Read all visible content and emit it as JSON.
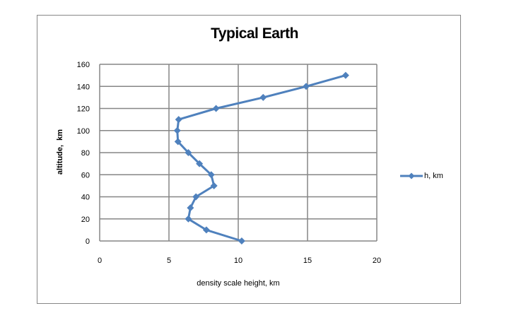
{
  "chart_data": {
    "type": "line",
    "title": "Typical Earth",
    "xlabel": "density scale height,  km",
    "ylabel": "altitude,  km",
    "xlim": [
      0,
      20
    ],
    "ylim": [
      0,
      160
    ],
    "x_ticks": [
      "0",
      "5",
      "10",
      "15",
      "20"
    ],
    "y_ticks": [
      "0",
      "20",
      "40",
      "60",
      "80",
      "100",
      "120",
      "140",
      "160"
    ],
    "grid": true,
    "legend_position": "right",
    "series": [
      {
        "name": "h, km",
        "color": "#4F81BD",
        "marker": "diamond",
        "points": [
          {
            "x": 10.25,
            "y": 0
          },
          {
            "x": 7.7,
            "y": 10
          },
          {
            "x": 6.4,
            "y": 20
          },
          {
            "x": 6.55,
            "y": 30
          },
          {
            "x": 6.95,
            "y": 40
          },
          {
            "x": 8.25,
            "y": 50
          },
          {
            "x": 8.05,
            "y": 60
          },
          {
            "x": 7.2,
            "y": 70
          },
          {
            "x": 6.4,
            "y": 80
          },
          {
            "x": 5.65,
            "y": 90
          },
          {
            "x": 5.6,
            "y": 100
          },
          {
            "x": 5.7,
            "y": 110
          },
          {
            "x": 8.4,
            "y": 120
          },
          {
            "x": 11.8,
            "y": 130
          },
          {
            "x": 14.9,
            "y": 140
          },
          {
            "x": 17.75,
            "y": 150
          }
        ]
      }
    ]
  },
  "colors": {
    "series": "#4F81BD",
    "grid": "#868686",
    "frame": "#868686"
  }
}
